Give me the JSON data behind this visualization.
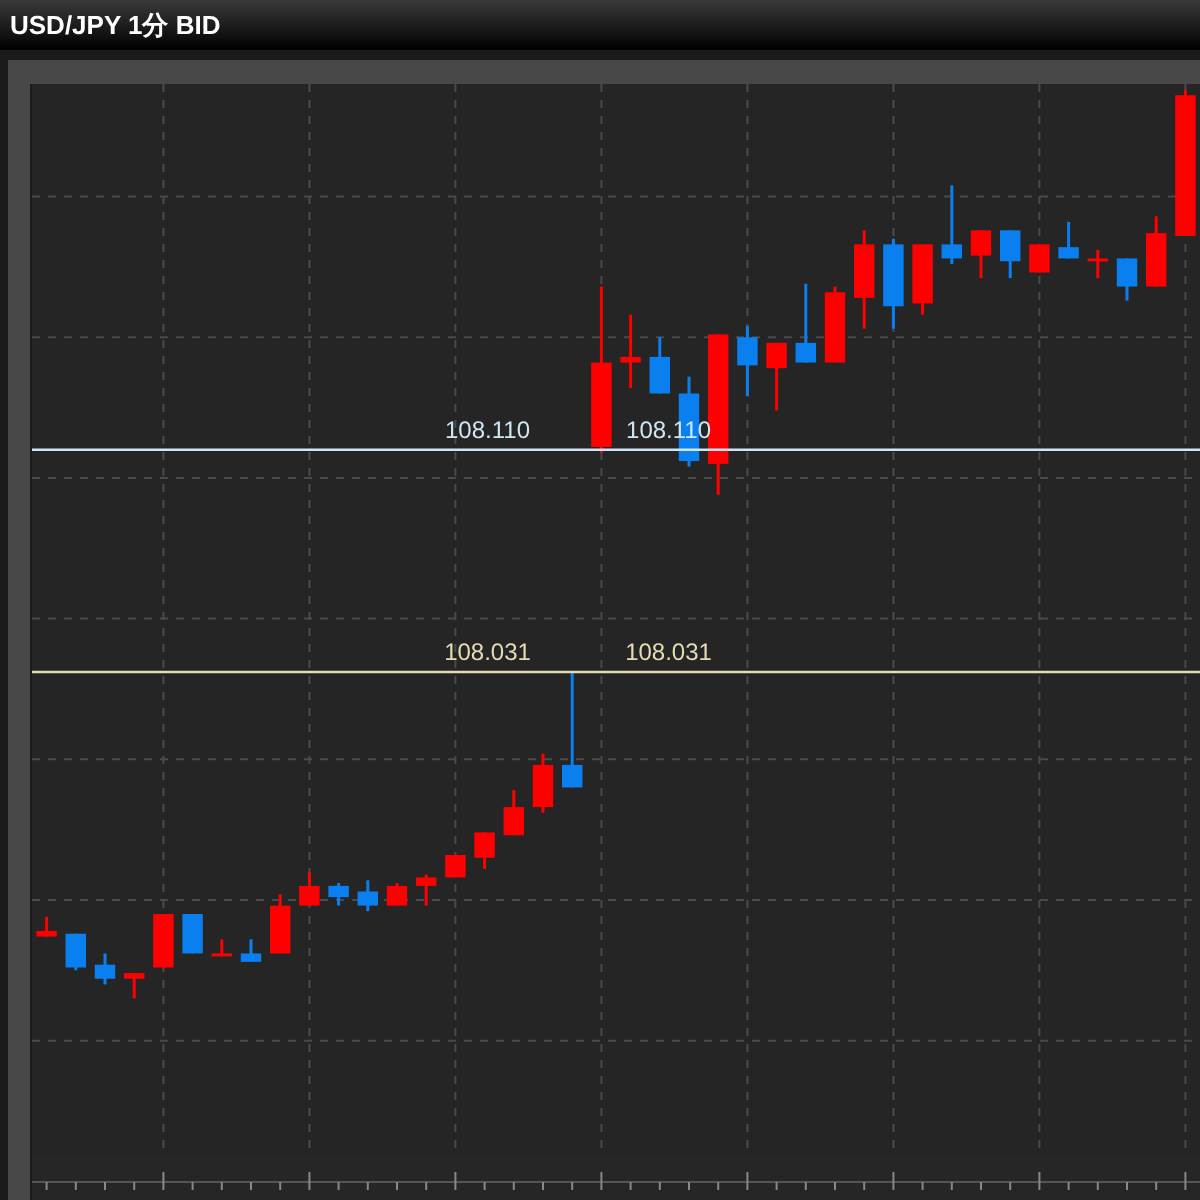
{
  "chart_data": {
    "type": "candlestick",
    "title": "USD/JPY 1分 BID",
    "categories": [
      null,
      null,
      null,
      null,
      null,
      null,
      null,
      null,
      null,
      null,
      null,
      null,
      null,
      null,
      null,
      null,
      null,
      null,
      null,
      null,
      null,
      null,
      null,
      null,
      null,
      null,
      null,
      null,
      null,
      null,
      null,
      null,
      null,
      null,
      null,
      null,
      null,
      null,
      null,
      null
    ],
    "ohlc": [
      [
        107.937,
        107.944,
        107.937,
        107.939
      ],
      [
        107.938,
        107.938,
        107.925,
        107.926
      ],
      [
        107.927,
        107.931,
        107.92,
        107.922
      ],
      [
        107.922,
        107.924,
        107.915,
        107.924
      ],
      [
        107.926,
        107.945,
        107.926,
        107.945
      ],
      [
        107.945,
        107.945,
        107.931,
        107.931
      ],
      [
        107.93,
        107.936,
        107.93,
        107.931
      ],
      [
        107.931,
        107.936,
        107.928,
        107.928
      ],
      [
        107.931,
        107.952,
        107.931,
        107.948
      ],
      [
        107.948,
        107.96,
        107.948,
        107.955
      ],
      [
        107.955,
        107.956,
        107.948,
        107.951
      ],
      [
        107.953,
        107.957,
        107.946,
        107.948
      ],
      [
        107.948,
        107.956,
        107.948,
        107.955
      ],
      [
        107.955,
        107.959,
        107.948,
        107.958
      ],
      [
        107.958,
        107.966,
        107.958,
        107.966
      ],
      [
        107.965,
        107.974,
        107.961,
        107.974
      ],
      [
        107.973,
        107.989,
        107.973,
        107.983
      ],
      [
        107.983,
        108.002,
        107.981,
        107.998
      ],
      [
        107.998,
        108.031,
        107.99,
        107.99
      ],
      [
        108.111,
        108.168,
        108.109,
        108.141
      ],
      [
        108.141,
        108.158,
        108.132,
        108.143
      ],
      [
        108.143,
        108.15,
        108.13,
        108.13
      ],
      [
        108.13,
        108.136,
        108.104,
        108.106
      ],
      [
        108.105,
        108.151,
        108.094,
        108.151
      ],
      [
        108.15,
        108.154,
        108.129,
        108.14
      ],
      [
        108.139,
        108.148,
        108.124,
        108.148
      ],
      [
        108.148,
        108.169,
        108.141,
        108.141
      ],
      [
        108.141,
        108.168,
        108.141,
        108.166
      ],
      [
        108.164,
        108.188,
        108.153,
        108.183
      ],
      [
        108.183,
        108.185,
        108.153,
        108.161
      ],
      [
        108.162,
        108.183,
        108.158,
        108.183
      ],
      [
        108.183,
        108.204,
        108.176,
        108.178
      ],
      [
        108.179,
        108.188,
        108.171,
        108.188
      ],
      [
        108.188,
        108.188,
        108.171,
        108.177
      ],
      [
        108.173,
        108.183,
        108.173,
        108.183
      ],
      [
        108.182,
        108.191,
        108.178,
        108.178
      ],
      [
        108.177,
        108.181,
        108.171,
        108.178
      ],
      [
        108.178,
        108.178,
        108.163,
        108.168
      ],
      [
        108.168,
        108.193,
        108.168,
        108.187
      ],
      [
        108.186,
        108.238,
        108.186,
        108.236
      ]
    ],
    "colors": [
      "#ff0000",
      "#0a80f0",
      "#0a80f0",
      "#ff0000",
      "#ff0000",
      "#0a80f0",
      "#ff0000",
      "#0a80f0",
      "#ff0000",
      "#ff0000",
      "#0a80f0",
      "#0a80f0",
      "#ff0000",
      "#ff0000",
      "#ff0000",
      "#ff0000",
      "#ff0000",
      "#ff0000",
      "#0a80f0",
      "#ff0000",
      "#ff0000",
      "#0a80f0",
      "#0a80f0",
      "#ff0000",
      "#0a80f0",
      "#ff0000",
      "#0a80f0",
      "#ff0000",
      "#ff0000",
      "#0a80f0",
      "#ff0000",
      "#0a80f0",
      "#ff0000",
      "#0a80f0",
      "#ff0000",
      "#0a80f0",
      "#ff0000",
      "#0a80f0",
      "#ff0000",
      "#ff0000"
    ],
    "ylim": [
      107.859,
      108.24
    ],
    "yticks": [
      {
        "value": 107.9,
        "label": null
      },
      {
        "value": 107.95,
        "label": null
      },
      {
        "value": 108.0,
        "label": null
      },
      {
        "value": 108.05,
        "label": null
      },
      {
        "value": 108.1,
        "label": null
      },
      {
        "value": 108.15,
        "label": null
      },
      {
        "value": 108.2,
        "label": null
      }
    ],
    "ref_lines": [
      {
        "axis": "y",
        "value": 108.11,
        "label": "108.110",
        "color": "#cfe6f5"
      },
      {
        "axis": "y",
        "value": 108.031,
        "label": "108.031",
        "color": "#e6dcb4"
      }
    ],
    "grid": true
  }
}
